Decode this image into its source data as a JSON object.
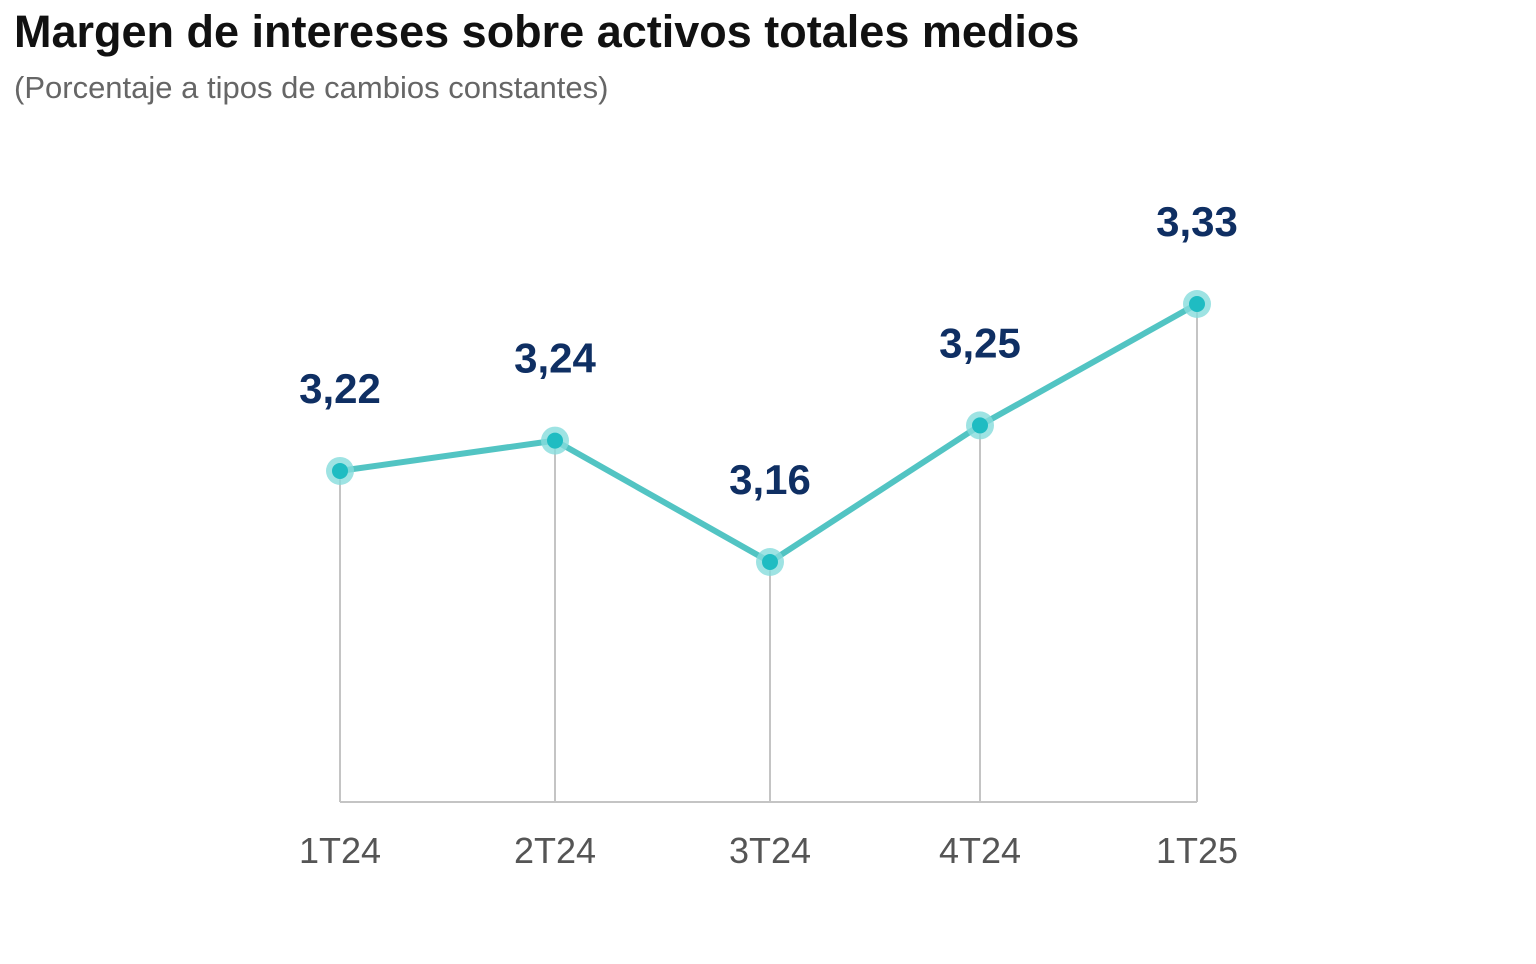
{
  "title": "Margen de intereses sobre activos totales medios",
  "subtitle": "(Porcentaje a tipos de cambios constantes)",
  "colors": {
    "line": "#52c4c3",
    "marker": "#1fbcc2",
    "marker_halo": "#86dcdc",
    "value_label": "#0f2f63",
    "drop_line": "#c4c4c4",
    "axis": "#c4c4c4"
  },
  "chart_data": {
    "type": "line",
    "categories": [
      "1T24",
      "2T24",
      "3T24",
      "4T24",
      "1T25"
    ],
    "values": [
      3.22,
      3.24,
      3.16,
      3.25,
      3.33
    ],
    "value_labels": [
      "3,22",
      "3,24",
      "3,16",
      "3,25",
      "3,33"
    ],
    "title": "Margen de intereses sobre activos totales medios",
    "subtitle": "(Porcentaje a tipos de cambios constantes)",
    "xlabel": "",
    "ylabel": "",
    "grid": false,
    "legend": "none"
  }
}
